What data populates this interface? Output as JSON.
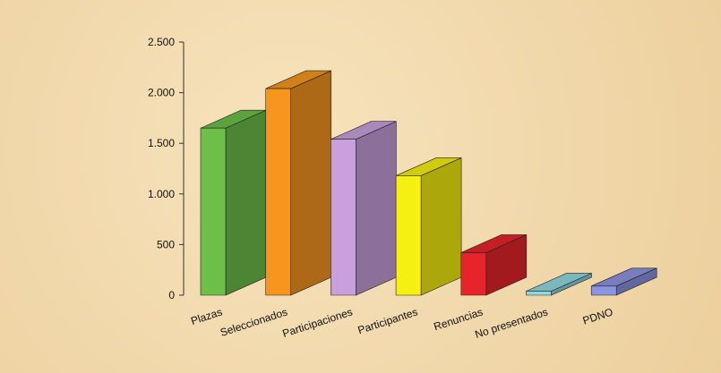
{
  "chart_data": {
    "type": "bar3d",
    "categories": [
      "Plazas",
      "Seleccionados",
      "Participaciones",
      "Participantes",
      "Renuncias",
      "No presentados",
      "PDNO"
    ],
    "values": [
      1650,
      2040,
      1540,
      1180,
      420,
      40,
      90
    ],
    "colors": [
      "#6cc04a",
      "#f7961e",
      "#c9a0dc",
      "#f5f00f",
      "#e8242b",
      "#8fd8e0",
      "#8c93e0"
    ],
    "ylim": [
      0,
      2500
    ],
    "yticks": [
      0,
      500,
      {
        "value": 1000,
        "label": "1.000"
      },
      {
        "value": 1500,
        "label": "1.500"
      },
      {
        "value": 2000,
        "label": "2.000"
      },
      {
        "value": 2500,
        "label": "2.500"
      }
    ]
  }
}
